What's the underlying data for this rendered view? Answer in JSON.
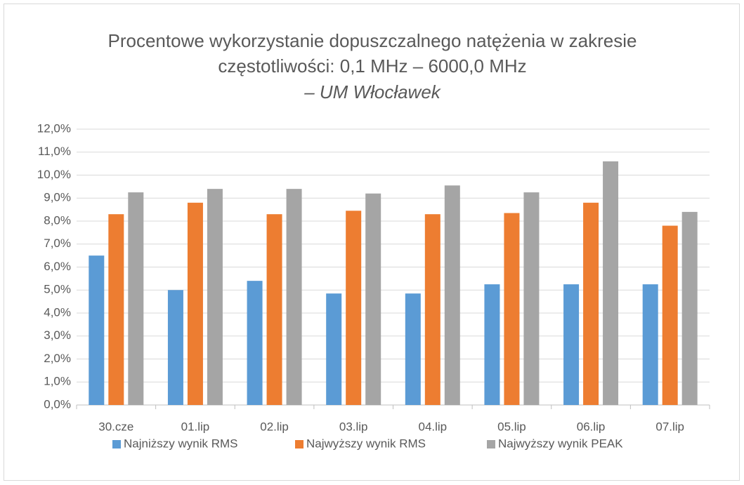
{
  "chart_data": {
    "type": "bar",
    "title": "Procentowe wykorzystanie dopuszczalnego natężenia w zakresie częstotliwości: 0,1 MHz – 6000,0 MHz",
    "subtitle": "– UM Włocławek",
    "categories": [
      "30.cze",
      "01.lip",
      "02.lip",
      "03.lip",
      "04.lip",
      "05.lip",
      "06.lip",
      "07.lip"
    ],
    "series": [
      {
        "name": "Najniższy wynik RMS",
        "color": "#5b9bd5",
        "values": [
          6.5,
          5.0,
          5.4,
          4.85,
          4.85,
          5.25,
          5.25,
          5.25
        ]
      },
      {
        "name": "Najwyższy wynik RMS",
        "color": "#ed7d31",
        "values": [
          8.3,
          8.8,
          8.3,
          8.45,
          8.3,
          8.35,
          8.8,
          7.8
        ]
      },
      {
        "name": "Najwyższy wynik PEAK",
        "color": "#a5a5a5",
        "values": [
          9.25,
          9.4,
          9.4,
          9.2,
          9.55,
          9.25,
          10.6,
          8.4
        ]
      }
    ],
    "ylim": [
      0,
      12
    ],
    "yticks": [
      {
        "value": 0,
        "label": "0,0%"
      },
      {
        "value": 1,
        "label": "1,0%"
      },
      {
        "value": 2,
        "label": "2,0%"
      },
      {
        "value": 3,
        "label": "3,0%"
      },
      {
        "value": 4,
        "label": "4,0%"
      },
      {
        "value": 5,
        "label": "5,0%"
      },
      {
        "value": 6,
        "label": "6,0%"
      },
      {
        "value": 7,
        "label": "7,0%"
      },
      {
        "value": 8,
        "label": "8,0%"
      },
      {
        "value": 9,
        "label": "9,0%"
      },
      {
        "value": 10,
        "label": "10,0%"
      },
      {
        "value": 11,
        "label": "11,0%"
      },
      {
        "value": 12,
        "label": "12,0%"
      }
    ],
    "grid": true,
    "legend": "bottom"
  }
}
